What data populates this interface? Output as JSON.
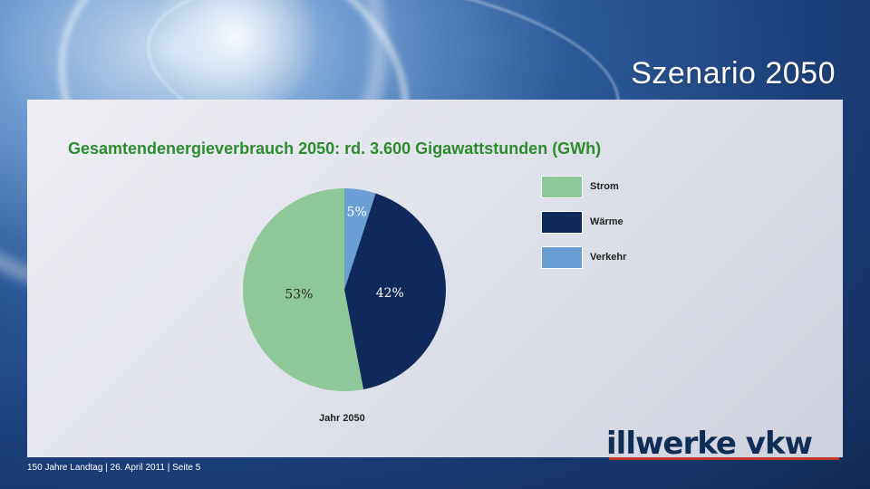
{
  "slide": {
    "title": "Szenario 2050",
    "footer": "150 Jahre Landtag | 26. April 2011 | Seite 5",
    "logo_text": "illwerke vkw"
  },
  "chart_data": {
    "type": "pie",
    "title": "Gesamtendenergieverbrauch 2050: rd. 3.600 Gigawattstunden (GWh)",
    "xlabel": "Jahr 2050",
    "categories": [
      "Strom",
      "Wärme",
      "Verkehr"
    ],
    "values": [
      53,
      42,
      5
    ],
    "value_labels": [
      "53%",
      "42%",
      "5%"
    ],
    "colors": [
      "#8fc898",
      "#0f2a5a",
      "#6b9fd4"
    ],
    "legend_position": "right"
  }
}
